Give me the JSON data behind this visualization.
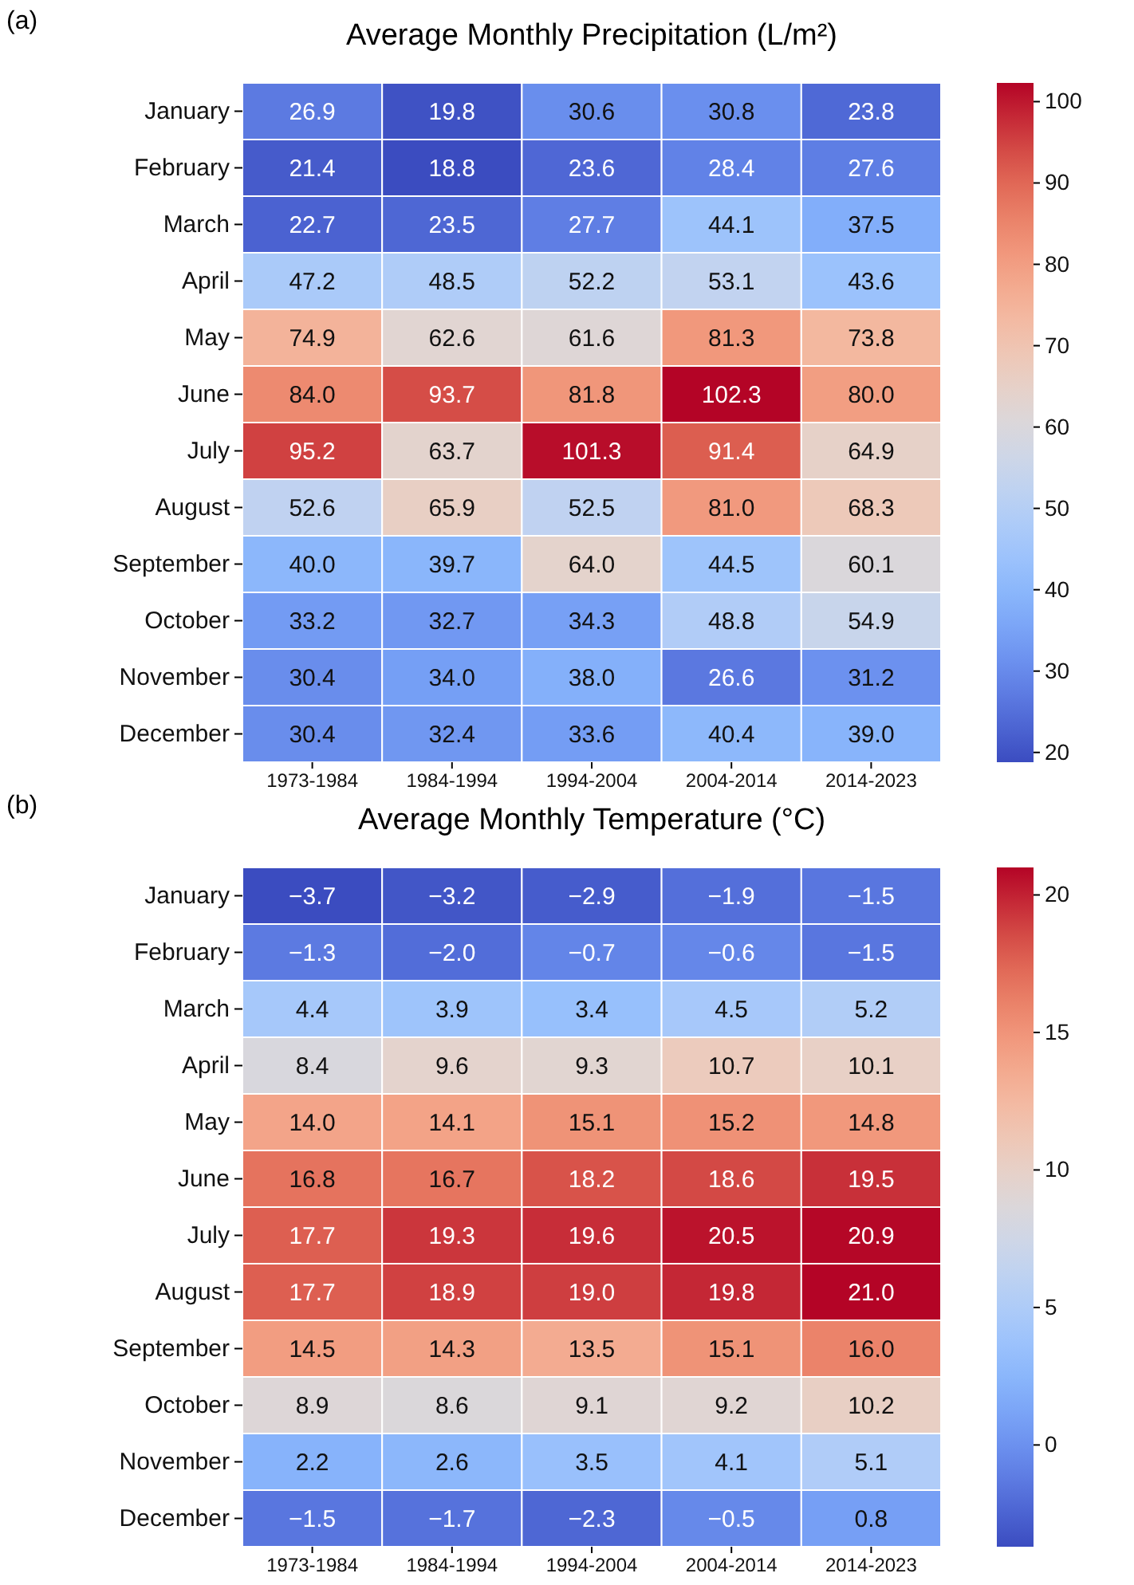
{
  "chart_data": [
    {
      "type": "heatmap",
      "title": "Average Monthly Precipitation (L/m²)",
      "annotations": [
        "(a)"
      ],
      "categories": [
        "1973-1984",
        "1984-1994",
        "1994-2004",
        "2004-2014",
        "2014-2023"
      ],
      "y_categories": [
        "January",
        "February",
        "March",
        "April",
        "May",
        "June",
        "July",
        "August",
        "September",
        "October",
        "November",
        "December"
      ],
      "cells": [
        [
          26.9,
          19.8,
          30.6,
          30.8,
          23.8
        ],
        [
          21.4,
          18.8,
          23.6,
          28.4,
          27.6
        ],
        [
          22.7,
          23.5,
          27.7,
          44.1,
          37.5
        ],
        [
          47.2,
          48.5,
          52.2,
          53.1,
          43.6
        ],
        [
          74.9,
          62.6,
          61.6,
          81.3,
          73.8
        ],
        [
          84.0,
          93.7,
          81.8,
          102.3,
          80.0
        ],
        [
          95.2,
          63.7,
          101.3,
          91.4,
          64.9
        ],
        [
          52.6,
          65.9,
          52.5,
          81.0,
          68.3
        ],
        [
          40.0,
          39.7,
          64.0,
          44.5,
          60.1
        ],
        [
          33.2,
          32.7,
          34.3,
          48.8,
          54.9
        ],
        [
          30.4,
          34.0,
          38.0,
          26.6,
          31.2
        ],
        [
          30.4,
          32.4,
          33.6,
          40.4,
          39.0
        ]
      ],
      "cell_labels": [
        [
          "26.9",
          "19.8",
          "30.6",
          "30.8",
          "23.8"
        ],
        [
          "21.4",
          "18.8",
          "23.6",
          "28.4",
          "27.6"
        ],
        [
          "22.7",
          "23.5",
          "27.7",
          "44.1",
          "37.5"
        ],
        [
          "47.2",
          "48.5",
          "52.2",
          "53.1",
          "43.6"
        ],
        [
          "74.9",
          "62.6",
          "61.6",
          "81.3",
          "73.8"
        ],
        [
          "84.0",
          "93.7",
          "81.8",
          "102.3",
          "80.0"
        ],
        [
          "95.2",
          "63.7",
          "101.3",
          "91.4",
          "64.9"
        ],
        [
          "52.6",
          "65.9",
          "52.5",
          "81.0",
          "68.3"
        ],
        [
          "40.0",
          "39.7",
          "64.0",
          "44.5",
          "60.1"
        ],
        [
          "33.2",
          "32.7",
          "34.3",
          "48.8",
          "54.9"
        ],
        [
          "30.4",
          "34.0",
          "38.0",
          "26.6",
          "31.2"
        ],
        [
          "30.4",
          "32.4",
          "33.6",
          "40.4",
          "39.0"
        ]
      ],
      "clim": [
        18.8,
        102.3
      ],
      "cticks": [
        20,
        30,
        40,
        50,
        60,
        70,
        80,
        90,
        100
      ]
    },
    {
      "type": "heatmap",
      "title": "Average Monthly Temperature (°C)",
      "annotations": [
        "(b)"
      ],
      "categories": [
        "1973-1984",
        "1984-1994",
        "1994-2004",
        "2004-2014",
        "2014-2023"
      ],
      "y_categories": [
        "January",
        "February",
        "March",
        "April",
        "May",
        "June",
        "July",
        "August",
        "September",
        "October",
        "November",
        "December"
      ],
      "cells": [
        [
          -3.7,
          -3.2,
          -2.9,
          -1.9,
          -1.5
        ],
        [
          -1.3,
          -2.0,
          -0.7,
          -0.6,
          -1.5
        ],
        [
          4.4,
          3.9,
          3.4,
          4.5,
          5.2
        ],
        [
          8.4,
          9.6,
          9.3,
          10.7,
          10.1
        ],
        [
          14.0,
          14.1,
          15.1,
          15.2,
          14.8
        ],
        [
          16.8,
          16.7,
          18.2,
          18.6,
          19.5
        ],
        [
          17.7,
          19.3,
          19.6,
          20.5,
          20.9
        ],
        [
          17.7,
          18.9,
          19.0,
          19.8,
          21.0
        ],
        [
          14.5,
          14.3,
          13.5,
          15.1,
          16.0
        ],
        [
          8.9,
          8.6,
          9.1,
          9.2,
          10.2
        ],
        [
          2.2,
          2.6,
          3.5,
          4.1,
          5.1
        ],
        [
          -1.5,
          -1.7,
          -2.3,
          -0.5,
          0.8
        ]
      ],
      "cell_labels": [
        [
          "−3.7",
          "−3.2",
          "−2.9",
          "−1.9",
          "−1.5"
        ],
        [
          "−1.3",
          "−2.0",
          "−0.7",
          "−0.6",
          "−1.5"
        ],
        [
          "4.4",
          "3.9",
          "3.4",
          "4.5",
          "5.2"
        ],
        [
          "8.4",
          "9.6",
          "9.3",
          "10.7",
          "10.1"
        ],
        [
          "14.0",
          "14.1",
          "15.1",
          "15.2",
          "14.8"
        ],
        [
          "16.8",
          "16.7",
          "18.2",
          "18.6",
          "19.5"
        ],
        [
          "17.7",
          "19.3",
          "19.6",
          "20.5",
          "20.9"
        ],
        [
          "17.7",
          "18.9",
          "19.0",
          "19.8",
          "21.0"
        ],
        [
          "14.5",
          "14.3",
          "13.5",
          "15.1",
          "16.0"
        ],
        [
          "8.9",
          "8.6",
          "9.1",
          "9.2",
          "10.2"
        ],
        [
          "2.2",
          "2.6",
          "3.5",
          "4.1",
          "5.1"
        ],
        [
          "−1.5",
          "−1.7",
          "−2.3",
          "−0.5",
          "0.8"
        ]
      ],
      "clim": [
        -3.7,
        21.0
      ],
      "cticks": [
        0,
        5,
        10,
        15,
        20
      ]
    }
  ]
}
